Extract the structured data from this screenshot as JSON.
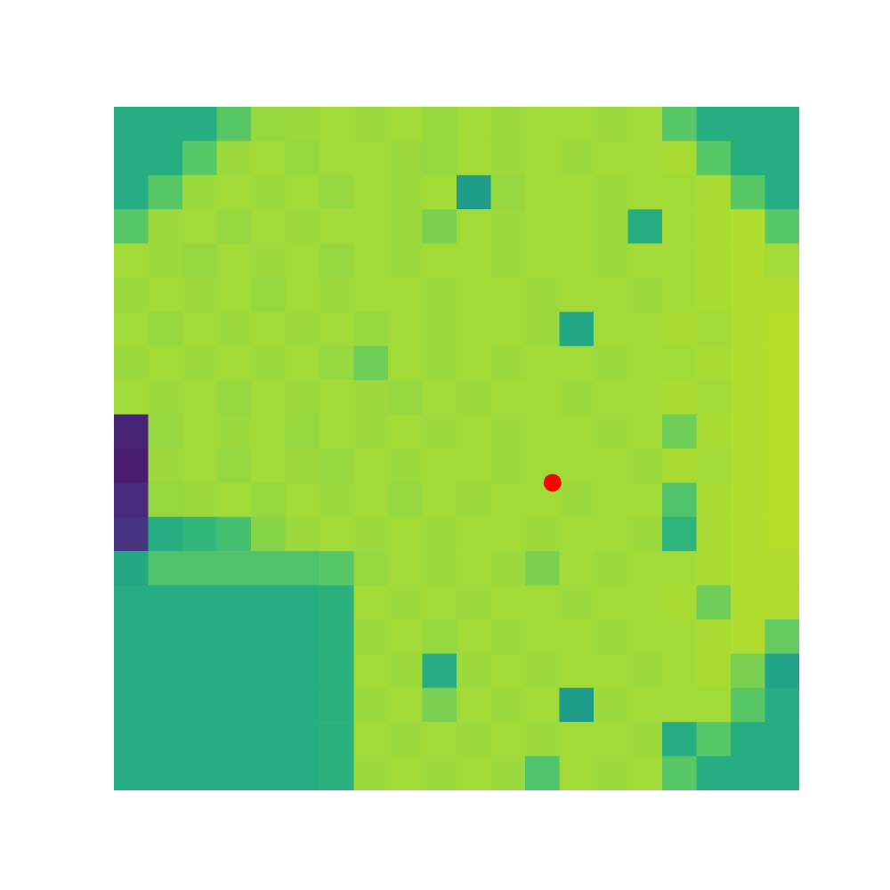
{
  "chart_data": {
    "type": "heatmap",
    "tick_labels": false,
    "xlim": [
      0,
      20
    ],
    "ylim": [
      20,
      0
    ],
    "color_range": [
      0,
      1
    ],
    "cells": [
      [
        0.62,
        0.62,
        0.62,
        0.74,
        0.84,
        0.85,
        0.86,
        0.85,
        0.86,
        0.84,
        0.86,
        0.85,
        0.86,
        0.86,
        0.85,
        0.86,
        0.74,
        0.62,
        0.62,
        0.62
      ],
      [
        0.62,
        0.62,
        0.74,
        0.85,
        0.86,
        0.84,
        0.86,
        0.86,
        0.85,
        0.84,
        0.86,
        0.85,
        0.86,
        0.85,
        0.86,
        0.86,
        0.87,
        0.74,
        0.62,
        0.62
      ],
      [
        0.62,
        0.74,
        0.85,
        0.86,
        0.85,
        0.86,
        0.84,
        0.86,
        0.85,
        0.86,
        0.55,
        0.84,
        0.86,
        0.86,
        0.85,
        0.86,
        0.86,
        0.87,
        0.74,
        0.62
      ],
      [
        0.74,
        0.85,
        0.86,
        0.84,
        0.86,
        0.85,
        0.86,
        0.86,
        0.85,
        0.8,
        0.86,
        0.85,
        0.86,
        0.86,
        0.85,
        0.62,
        0.86,
        0.87,
        0.88,
        0.74
      ],
      [
        0.86,
        0.85,
        0.84,
        0.86,
        0.85,
        0.86,
        0.84,
        0.86,
        0.85,
        0.86,
        0.86,
        0.85,
        0.86,
        0.86,
        0.85,
        0.86,
        0.86,
        0.87,
        0.88,
        0.86
      ],
      [
        0.85,
        0.86,
        0.85,
        0.86,
        0.84,
        0.86,
        0.85,
        0.86,
        0.86,
        0.85,
        0.86,
        0.86,
        0.85,
        0.86,
        0.86,
        0.85,
        0.86,
        0.87,
        0.88,
        0.88
      ],
      [
        0.86,
        0.84,
        0.86,
        0.85,
        0.86,
        0.85,
        0.86,
        0.84,
        0.86,
        0.85,
        0.86,
        0.86,
        0.85,
        0.6,
        0.86,
        0.86,
        0.87,
        0.86,
        0.88,
        0.89
      ],
      [
        0.85,
        0.86,
        0.85,
        0.86,
        0.85,
        0.86,
        0.84,
        0.78,
        0.86,
        0.85,
        0.86,
        0.85,
        0.86,
        0.86,
        0.85,
        0.86,
        0.86,
        0.87,
        0.88,
        0.89
      ],
      [
        0.86,
        0.85,
        0.86,
        0.84,
        0.86,
        0.85,
        0.86,
        0.85,
        0.84,
        0.86,
        0.85,
        0.86,
        0.86,
        0.85,
        0.86,
        0.86,
        0.87,
        0.86,
        0.88,
        0.89
      ],
      [
        0.1,
        0.84,
        0.86,
        0.85,
        0.86,
        0.84,
        0.86,
        0.85,
        0.86,
        0.85,
        0.86,
        0.85,
        0.86,
        0.86,
        0.85,
        0.86,
        0.78,
        0.87,
        0.88,
        0.89
      ],
      [
        0.08,
        0.85,
        0.86,
        0.84,
        0.86,
        0.85,
        0.84,
        0.86,
        0.85,
        0.86,
        0.86,
        0.85,
        0.86,
        0.86,
        0.86,
        0.85,
        0.87,
        0.86,
        0.88,
        0.89
      ],
      [
        0.12,
        0.84,
        0.85,
        0.86,
        0.84,
        0.86,
        0.85,
        0.86,
        0.84,
        0.86,
        0.85,
        0.86,
        0.86,
        0.85,
        0.86,
        0.86,
        0.72,
        0.87,
        0.88,
        0.89
      ],
      [
        0.15,
        0.62,
        0.66,
        0.7,
        0.82,
        0.85,
        0.86,
        0.85,
        0.86,
        0.85,
        0.86,
        0.86,
        0.85,
        0.86,
        0.86,
        0.85,
        0.65,
        0.87,
        0.88,
        0.89
      ],
      [
        0.6,
        0.72,
        0.72,
        0.72,
        0.72,
        0.72,
        0.74,
        0.84,
        0.86,
        0.85,
        0.86,
        0.85,
        0.8,
        0.86,
        0.85,
        0.86,
        0.86,
        0.87,
        0.88,
        0.88
      ],
      [
        0.62,
        0.62,
        0.62,
        0.62,
        0.62,
        0.62,
        0.64,
        0.86,
        0.85,
        0.86,
        0.85,
        0.86,
        0.86,
        0.85,
        0.86,
        0.86,
        0.87,
        0.78,
        0.88,
        0.88
      ],
      [
        0.62,
        0.62,
        0.62,
        0.62,
        0.62,
        0.62,
        0.64,
        0.85,
        0.86,
        0.84,
        0.86,
        0.85,
        0.86,
        0.86,
        0.85,
        0.86,
        0.86,
        0.87,
        0.88,
        0.76
      ],
      [
        0.62,
        0.62,
        0.62,
        0.62,
        0.62,
        0.62,
        0.64,
        0.86,
        0.85,
        0.62,
        0.85,
        0.86,
        0.85,
        0.86,
        0.86,
        0.85,
        0.86,
        0.87,
        0.8,
        0.58
      ],
      [
        0.62,
        0.62,
        0.62,
        0.62,
        0.62,
        0.62,
        0.64,
        0.85,
        0.86,
        0.8,
        0.86,
        0.85,
        0.86,
        0.55,
        0.85,
        0.86,
        0.86,
        0.86,
        0.74,
        0.62
      ],
      [
        0.62,
        0.62,
        0.62,
        0.62,
        0.62,
        0.62,
        0.64,
        0.86,
        0.85,
        0.86,
        0.85,
        0.86,
        0.85,
        0.86,
        0.86,
        0.85,
        0.62,
        0.74,
        0.62,
        0.62
      ],
      [
        0.62,
        0.62,
        0.62,
        0.62,
        0.62,
        0.62,
        0.64,
        0.85,
        0.86,
        0.85,
        0.86,
        0.85,
        0.72,
        0.86,
        0.85,
        0.86,
        0.74,
        0.62,
        0.62,
        0.62
      ]
    ],
    "series": [
      {
        "type": "scatter",
        "x": [
          12.8
        ],
        "values": [
          11.0
        ],
        "color": "#ff0000",
        "marker": "circle"
      }
    ]
  }
}
